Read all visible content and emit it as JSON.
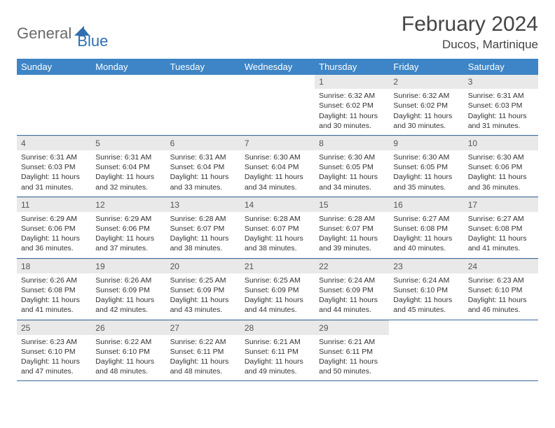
{
  "brand": {
    "part1": "General",
    "part2": "Blue"
  },
  "title": "February 2024",
  "location": "Ducos, Martinique",
  "colors": {
    "header_bg": "#3d85c6",
    "header_text": "#ffffff",
    "daynum_bg": "#e9e9e9",
    "week_border": "#3d6a9a",
    "body_text": "#333333",
    "brand_gray": "#6a6a6a",
    "brand_blue": "#2f6fb0"
  },
  "weekdays": [
    "Sunday",
    "Monday",
    "Tuesday",
    "Wednesday",
    "Thursday",
    "Friday",
    "Saturday"
  ],
  "weeks": [
    [
      null,
      null,
      null,
      null,
      {
        "n": "1",
        "sunrise": "6:32 AM",
        "sunset": "6:02 PM",
        "daylight": "11 hours and 30 minutes."
      },
      {
        "n": "2",
        "sunrise": "6:32 AM",
        "sunset": "6:02 PM",
        "daylight": "11 hours and 30 minutes."
      },
      {
        "n": "3",
        "sunrise": "6:31 AM",
        "sunset": "6:03 PM",
        "daylight": "11 hours and 31 minutes."
      }
    ],
    [
      {
        "n": "4",
        "sunrise": "6:31 AM",
        "sunset": "6:03 PM",
        "daylight": "11 hours and 31 minutes."
      },
      {
        "n": "5",
        "sunrise": "6:31 AM",
        "sunset": "6:04 PM",
        "daylight": "11 hours and 32 minutes."
      },
      {
        "n": "6",
        "sunrise": "6:31 AM",
        "sunset": "6:04 PM",
        "daylight": "11 hours and 33 minutes."
      },
      {
        "n": "7",
        "sunrise": "6:30 AM",
        "sunset": "6:04 PM",
        "daylight": "11 hours and 34 minutes."
      },
      {
        "n": "8",
        "sunrise": "6:30 AM",
        "sunset": "6:05 PM",
        "daylight": "11 hours and 34 minutes."
      },
      {
        "n": "9",
        "sunrise": "6:30 AM",
        "sunset": "6:05 PM",
        "daylight": "11 hours and 35 minutes."
      },
      {
        "n": "10",
        "sunrise": "6:30 AM",
        "sunset": "6:06 PM",
        "daylight": "11 hours and 36 minutes."
      }
    ],
    [
      {
        "n": "11",
        "sunrise": "6:29 AM",
        "sunset": "6:06 PM",
        "daylight": "11 hours and 36 minutes."
      },
      {
        "n": "12",
        "sunrise": "6:29 AM",
        "sunset": "6:06 PM",
        "daylight": "11 hours and 37 minutes."
      },
      {
        "n": "13",
        "sunrise": "6:28 AM",
        "sunset": "6:07 PM",
        "daylight": "11 hours and 38 minutes."
      },
      {
        "n": "14",
        "sunrise": "6:28 AM",
        "sunset": "6:07 PM",
        "daylight": "11 hours and 38 minutes."
      },
      {
        "n": "15",
        "sunrise": "6:28 AM",
        "sunset": "6:07 PM",
        "daylight": "11 hours and 39 minutes."
      },
      {
        "n": "16",
        "sunrise": "6:27 AM",
        "sunset": "6:08 PM",
        "daylight": "11 hours and 40 minutes."
      },
      {
        "n": "17",
        "sunrise": "6:27 AM",
        "sunset": "6:08 PM",
        "daylight": "11 hours and 41 minutes."
      }
    ],
    [
      {
        "n": "18",
        "sunrise": "6:26 AM",
        "sunset": "6:08 PM",
        "daylight": "11 hours and 41 minutes."
      },
      {
        "n": "19",
        "sunrise": "6:26 AM",
        "sunset": "6:09 PM",
        "daylight": "11 hours and 42 minutes."
      },
      {
        "n": "20",
        "sunrise": "6:25 AM",
        "sunset": "6:09 PM",
        "daylight": "11 hours and 43 minutes."
      },
      {
        "n": "21",
        "sunrise": "6:25 AM",
        "sunset": "6:09 PM",
        "daylight": "11 hours and 44 minutes."
      },
      {
        "n": "22",
        "sunrise": "6:24 AM",
        "sunset": "6:09 PM",
        "daylight": "11 hours and 44 minutes."
      },
      {
        "n": "23",
        "sunrise": "6:24 AM",
        "sunset": "6:10 PM",
        "daylight": "11 hours and 45 minutes."
      },
      {
        "n": "24",
        "sunrise": "6:23 AM",
        "sunset": "6:10 PM",
        "daylight": "11 hours and 46 minutes."
      }
    ],
    [
      {
        "n": "25",
        "sunrise": "6:23 AM",
        "sunset": "6:10 PM",
        "daylight": "11 hours and 47 minutes."
      },
      {
        "n": "26",
        "sunrise": "6:22 AM",
        "sunset": "6:10 PM",
        "daylight": "11 hours and 48 minutes."
      },
      {
        "n": "27",
        "sunrise": "6:22 AM",
        "sunset": "6:11 PM",
        "daylight": "11 hours and 48 minutes."
      },
      {
        "n": "28",
        "sunrise": "6:21 AM",
        "sunset": "6:11 PM",
        "daylight": "11 hours and 49 minutes."
      },
      {
        "n": "29",
        "sunrise": "6:21 AM",
        "sunset": "6:11 PM",
        "daylight": "11 hours and 50 minutes."
      },
      null,
      null
    ]
  ],
  "labels": {
    "sunrise": "Sunrise:",
    "sunset": "Sunset:",
    "daylight": "Daylight:"
  }
}
